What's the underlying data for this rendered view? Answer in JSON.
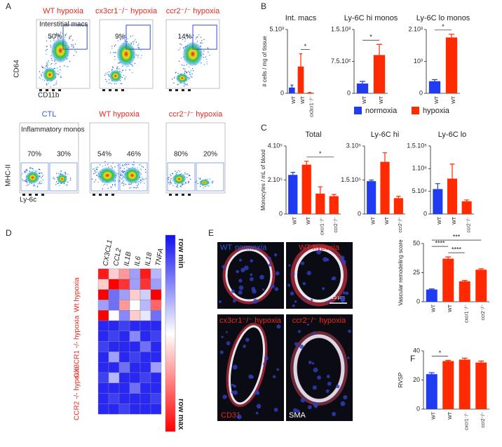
{
  "panels": {
    "A": {
      "label": "A",
      "top_row": {
        "gate_label": "Interstitial macs",
        "y_axis": "CD64",
        "x_axis": "CD11b",
        "plots": [
          {
            "title": "WT hypoxia",
            "color": "#e8281e",
            "gate_percent": "50%"
          },
          {
            "title": "cx3cr1⁻/⁻ hypoxia",
            "color": "#e8281e",
            "gate_percent": "9%"
          },
          {
            "title": "ccr2⁻/⁻ hypoxia",
            "color": "#e8281e",
            "gate_percent": "14%"
          }
        ]
      },
      "bottom_row": {
        "gate_label": "Inflammatory monos",
        "y_axis": "MHC-II",
        "x_axis": "Ly-6c",
        "plots": [
          {
            "title": "CTL",
            "color": "#2d5be3",
            "left_gate": "70%",
            "right_gate": "30%"
          },
          {
            "title": "WT hypoxia",
            "color": "#e8281e",
            "left_gate": "54%",
            "right_gate": "46%"
          },
          {
            "title": "ccr2⁻/⁻ hypoxia",
            "color": "#e8281e",
            "left_gate": "80%",
            "right_gate": "20%"
          }
        ]
      }
    },
    "B": {
      "label": "B"
    },
    "C": {
      "label": "C"
    },
    "D": {
      "label": "D"
    },
    "E": {
      "label": "E",
      "images": [
        {
          "title": "WT",
          "color": "#2d5be3",
          "subtitle": "normoxia",
          "subtitle_color": "#2d5be3"
        },
        {
          "title": "WT hypoxia",
          "color": "#e8281e"
        },
        {
          "title": "cx3cr1⁻/⁻ hypoxia",
          "color": "#e8281e",
          "stain": "CD31",
          "stain_color": "#e8281e"
        },
        {
          "title": "ccr2⁻/⁻ hypoxia",
          "color": "#e8281e",
          "stain": "SMA",
          "stain_color": "#ffffff"
        }
      ],
      "scale_bar": "15 µm"
    },
    "F": {
      "label": "F"
    }
  },
  "legend": [
    {
      "name": "normoxia",
      "color": "#1f3cf0"
    },
    {
      "name": "hypoxia",
      "color": "#ff2a00"
    }
  ],
  "heatmap": {
    "columns": [
      "CX3CL1",
      "CCL2",
      "IL1B",
      "IL6",
      "IL18",
      "TNFA"
    ],
    "row_groups": [
      "Wt hypoxia",
      "CX3CR1 -/- hypoxia",
      "CCR2 -/- hypoxia"
    ],
    "group_color": "#e8281e",
    "scale_labels": [
      "row min",
      "row max"
    ],
    "values": [
      [
        0.95,
        0.6,
        0.7,
        0.3,
        0.95,
        0.35
      ],
      [
        0.6,
        1,
        0.9,
        0.3,
        0.9,
        0.3
      ],
      [
        1,
        0.2,
        0.3,
        0.6,
        0.4,
        1
      ],
      [
        0.3,
        0.2,
        0.7,
        0.5,
        0.35,
        0.8
      ],
      [
        1,
        0.5,
        0.25,
        0.6,
        0.45,
        0.2
      ],
      [
        0.05,
        0.05,
        0.1,
        0.05,
        0.05,
        0.05
      ],
      [
        0.05,
        0.1,
        0.05,
        0.25,
        0.05,
        0.1
      ],
      [
        0.1,
        0.05,
        0.05,
        0.05,
        0.2,
        0.05
      ],
      [
        0.05,
        0.3,
        0.05,
        0.1,
        0.05,
        0.05
      ],
      [
        0.05,
        0.05,
        0.2,
        0.05,
        0.05,
        0.3
      ],
      [
        0.1,
        0.35,
        0.05,
        0.05,
        0.1,
        0.05
      ],
      [
        0.05,
        0.05,
        0.05,
        0.2,
        0.05,
        0.05
      ],
      [
        0.05,
        0.1,
        0.05,
        0.05,
        0.05,
        0.1
      ],
      [
        0.05,
        0.05,
        0.1,
        0.05,
        0.05,
        0.05
      ]
    ]
  },
  "chart_data": [
    {
      "type": "bar",
      "title": "Int. macs",
      "y_label": "# cells / mg of tissue",
      "categories": [
        "WT",
        "WT",
        "cx3cr1⁻/⁻"
      ],
      "values": [
        450,
        2100,
        50
      ],
      "errors": [
        200,
        1000,
        20
      ],
      "colors": [
        "#1f3cf0",
        "#ff2a00",
        "#ff2a00"
      ],
      "ylim": [
        0,
        5000
      ],
      "yticks": [
        0,
        {
          "value": 5000,
          "label": "5.10³"
        }
      ],
      "significance": [
        "*"
      ]
    },
    {
      "type": "bar",
      "title": "Ly-6C hi monos",
      "categories": [
        "WT",
        "WT"
      ],
      "values": [
        230,
        900
      ],
      "errors": [
        50,
        250
      ],
      "colors": [
        "#1f3cf0",
        "#ff2a00"
      ],
      "ylim": [
        0,
        1500
      ],
      "yticks": [
        0,
        {
          "value": 750,
          "label": "7.5.10²"
        },
        {
          "value": 1500,
          "label": "1.5.10³"
        }
      ],
      "significance": [
        "*"
      ]
    },
    {
      "type": "bar",
      "title": "Ly-6C lo monos",
      "categories": [
        "WT",
        "WT"
      ],
      "values": [
        380,
        1750
      ],
      "errors": [
        50,
        100
      ],
      "colors": [
        "#1f3cf0",
        "#ff2a00"
      ],
      "ylim": [
        0,
        2000
      ],
      "yticks": [
        0,
        {
          "value": 1000,
          "label": "10³"
        },
        {
          "value": 2000,
          "label": "2.10³"
        }
      ],
      "significance": [
        "*"
      ]
    },
    {
      "type": "bar",
      "title": "Total",
      "y_label": "Monocytes / mL of blood",
      "categories": [
        "WT",
        "WT",
        "cxcr1⁻/⁻",
        "ccr2⁻/⁻"
      ],
      "values": [
        230000,
        290000,
        120000,
        105000
      ],
      "errors": [
        15000,
        20000,
        40000,
        10000
      ],
      "colors": [
        "#1f3cf0",
        "#ff2a00",
        "#ff2a00",
        "#ff2a00"
      ],
      "ylim": [
        0,
        400000
      ],
      "yticks": [
        0,
        {
          "value": 200000,
          "label": "2.10⁵"
        },
        {
          "value": 400000,
          "label": "4.10⁵"
        }
      ],
      "significance": [
        "*"
      ]
    },
    {
      "type": "bar",
      "title": "Ly-6C hi",
      "categories": [
        "WT",
        "WT",
        "ccr2⁻/⁻"
      ],
      "values": [
        145000,
        230000,
        70000
      ],
      "errors": [
        5000,
        40000,
        8000
      ],
      "colors": [
        "#1f3cf0",
        "#ff2a00",
        "#ff2a00"
      ],
      "ylim": [
        0,
        300000
      ],
      "yticks": [
        0,
        {
          "value": 150000,
          "label": "1.5.10⁵"
        },
        {
          "value": 300000,
          "label": "3.10⁵"
        }
      ],
      "significance": []
    },
    {
      "type": "bar",
      "title": "Ly-6C lo",
      "categories": [
        "WT",
        "WT",
        "ccr2⁻/⁻"
      ],
      "values": [
        55000,
        78000,
        28000
      ],
      "errors": [
        12000,
        32000,
        3000
      ],
      "colors": [
        "#1f3cf0",
        "#ff2a00",
        "#ff2a00"
      ],
      "ylim": [
        0,
        150000
      ],
      "yticks": [
        0,
        {
          "value": 50000,
          "label": "5.10⁴"
        },
        {
          "value": 100000,
          "label": "1.10⁵"
        },
        {
          "value": 150000,
          "label": "1.5.10⁵"
        }
      ],
      "significance": []
    },
    {
      "type": "bar",
      "y_label": "Vascular remodeling score",
      "categories": [
        "WT",
        "WT",
        "cxcr1⁻/⁻",
        "ccr2⁻/⁻"
      ],
      "values": [
        10.5,
        37,
        17.5,
        27.5
      ],
      "errors": [
        0.5,
        1.5,
        0.8,
        0.8
      ],
      "colors": [
        "#1f3cf0",
        "#ff2a00",
        "#ff2a00",
        "#ff2a00"
      ],
      "ylim": [
        0,
        50
      ],
      "yticks": [
        0,
        25,
        50
      ],
      "significance": [
        "***",
        "****",
        "****"
      ]
    },
    {
      "type": "bar",
      "y_label": "RVSP",
      "categories": [
        "WT",
        "WT",
        "cxcr1⁻/⁻",
        "ccr2⁻/⁻"
      ],
      "values": [
        24,
        33,
        34,
        32
      ],
      "errors": [
        1,
        0.5,
        1,
        1
      ],
      "colors": [
        "#1f3cf0",
        "#ff2a00",
        "#ff2a00",
        "#ff2a00"
      ],
      "ylim": [
        0,
        40
      ],
      "yticks": [
        0,
        20,
        40
      ],
      "significance": [
        "*"
      ]
    }
  ]
}
